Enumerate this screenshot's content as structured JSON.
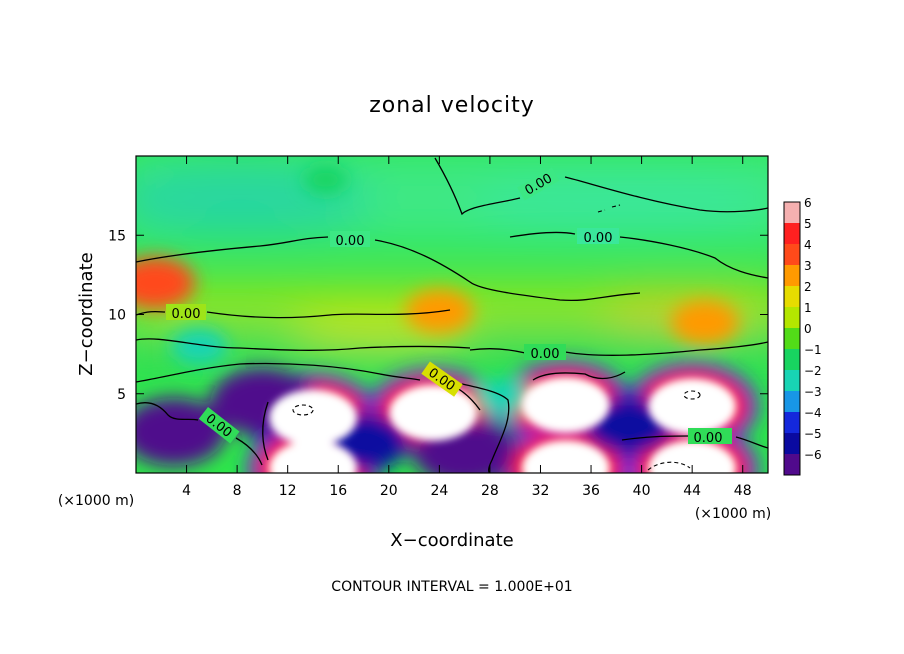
{
  "chart_data": {
    "type": "heatmap",
    "title": "zonal velocity",
    "xlabel": "X−coordinate",
    "ylabel": "Z−coordinate",
    "x_unit_note_left": "(×1000 m)",
    "x_unit_note_right": "(×1000 m)",
    "xlim": [
      0,
      50
    ],
    "ylim": [
      0,
      20
    ],
    "x_ticks": [
      "4",
      "8",
      "12",
      "16",
      "20",
      "24",
      "28",
      "32",
      "36",
      "40",
      "44",
      "48"
    ],
    "x_tick_values": [
      4,
      8,
      12,
      16,
      20,
      24,
      28,
      32,
      36,
      40,
      44,
      48
    ],
    "y_ticks": [
      "5",
      "10",
      "15"
    ],
    "y_tick_values": [
      5,
      10,
      15
    ],
    "colorbar_levels": [
      "6",
      "5",
      "4",
      "3",
      "2",
      "1",
      "0",
      "−1",
      "−2",
      "−3",
      "−4",
      "−5",
      "−6"
    ],
    "colorbar_range": [
      -6,
      6
    ],
    "colorbar_colors": [
      "#f5b0b0",
      "#ff2020",
      "#ff4a1a",
      "#ff9a00",
      "#e6dc00",
      "#b4e600",
      "#52dc18",
      "#18d460",
      "#18d4b4",
      "#1896e6",
      "#1428dc",
      "#0a0aa0",
      "#500a8c"
    ],
    "contour_labels": [
      "0.00",
      "0.00",
      "0.00",
      "0.00",
      "0.00",
      "0.00",
      "0.00",
      "0.00"
    ],
    "footer": "CONTOUR INTERVAL = 1.000E+01",
    "features": [
      {
        "x": 14,
        "z": 3.5,
        "value": 6
      },
      {
        "x": 23.5,
        "z": 3.8,
        "value": 6
      },
      {
        "x": 34,
        "z": 4.3,
        "value": 6
      },
      {
        "x": 44,
        "z": 4.2,
        "value": 6
      },
      {
        "x": 14,
        "z": 0.3,
        "value": 6
      },
      {
        "x": 34,
        "z": 0.3,
        "value": 6
      },
      {
        "x": 44,
        "z": 0.3,
        "value": 6
      },
      {
        "x": 1.5,
        "z": 12,
        "value": 4
      },
      {
        "x": 45,
        "z": 9.5,
        "value": 3
      },
      {
        "x": 24,
        "z": 10.2,
        "value": 3
      },
      {
        "x": 10,
        "z": 4.5,
        "value": -6
      },
      {
        "x": 3,
        "z": 2.6,
        "value": -6
      },
      {
        "x": 18,
        "z": 2,
        "value": -5
      },
      {
        "x": 26,
        "z": 1.3,
        "value": -6
      },
      {
        "x": 39,
        "z": 3,
        "value": -5
      },
      {
        "x": 29,
        "z": 4.8,
        "value": -2
      },
      {
        "x": 5,
        "z": 8,
        "value": -2
      },
      {
        "x": 15,
        "z": 18.5,
        "value": -1
      }
    ]
  }
}
